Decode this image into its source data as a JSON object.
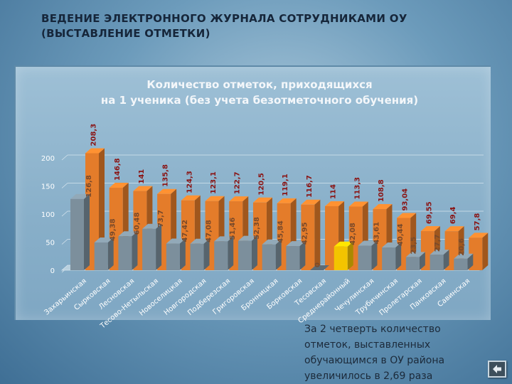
{
  "slide": {
    "title_line1": "ВЕДЕНИЕ ЭЛЕКТРОННОГО ЖУРНАЛА СОТРУДНИКАМИ ОУ",
    "title_line2": "(ВЫСТАВЛЕНИЕ ОТМЕТКИ)",
    "note_lines": [
      "За 2 четверть количество",
      "отметок, выставленных",
      "обучающимся в ОУ района",
      "увеличилось в 2,69 раза"
    ]
  },
  "chart_data": {
    "type": "bar",
    "title": "Количество отметок, приходящихся на 1 ученика (без учета безотметочного обучения)",
    "title_lines": [
      "Количество отметок, приходящихся",
      "на 1 ученика (без учета безотметочного обучения)"
    ],
    "xlabel": "",
    "ylabel": "",
    "ylim": [
      0,
      200
    ],
    "yticks": [
      0,
      50,
      100,
      150,
      200
    ],
    "grid": true,
    "legend": "none",
    "categories": [
      "Захарьинская",
      "Сырковская",
      "Лесновская",
      "Тесово-Нетыльская",
      "Новоселицкая",
      "Новгородская",
      "Подберезская",
      "Григоровская",
      "Бронницкая",
      "Борковская",
      "Тесовская",
      "Среднерайонный",
      "Чечулинская",
      "Трубичинская",
      "Пролетарская",
      "Панковская",
      "Савинская"
    ],
    "series": [
      {
        "values": [
          126.8,
          49.38,
          60.48,
          73.7,
          47.42,
          47.08,
          51.46,
          52.38,
          45.84,
          42.95,
          0,
          42.08,
          43.61,
          40.44,
          23.5,
          27.7,
          20.6
        ],
        "labels": [
          "126,8",
          "49,38",
          "60,48",
          "73,7",
          "47,42",
          "47,08",
          "51,46",
          "52,38",
          "45,84",
          "42,95",
          "0",
          "42,08",
          "43,61",
          "40,44",
          "23,5",
          "27,7",
          "20,6"
        ]
      },
      {
        "values": [
          208.3,
          146.8,
          141,
          135.8,
          124.3,
          123.1,
          122.7,
          120.5,
          119.1,
          116.7,
          114,
          113.3,
          108.8,
          93.04,
          69.55,
          69.4,
          57.8
        ],
        "labels": [
          "208,3",
          "146,8",
          "141",
          "135,8",
          "124,3",
          "123,1",
          "122,7",
          "120,5",
          "119,1",
          "116,7",
          "114",
          "113,3",
          "108,8",
          "93,04",
          "69,55",
          "69,4",
          "57,8"
        ]
      }
    ],
    "colors": {
      "series_1": "#7c8f9c",
      "series_2": "#e47c2a",
      "highlight": "#f3c400",
      "highlight_index": 11
    }
  }
}
